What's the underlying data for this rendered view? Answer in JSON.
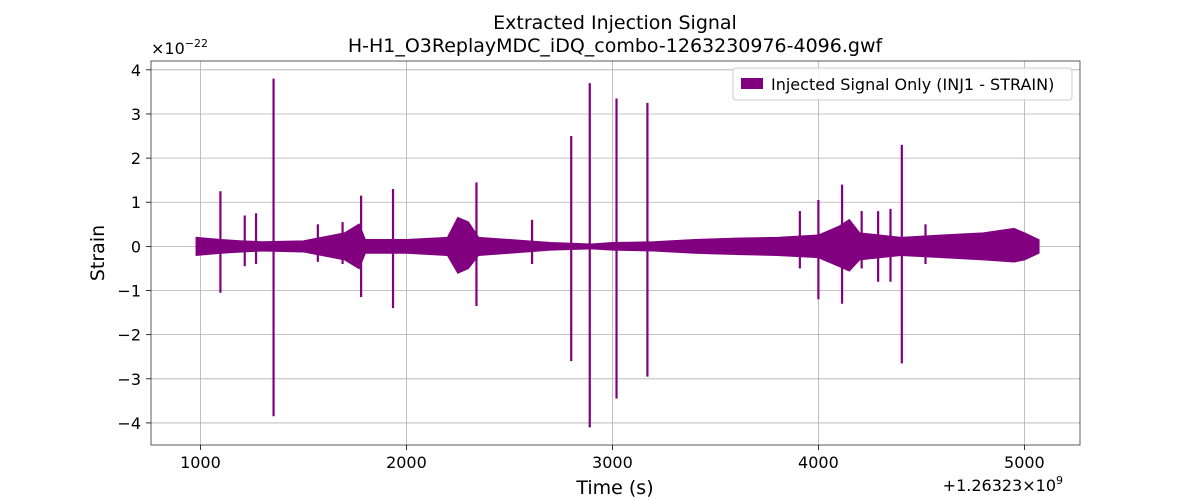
{
  "chart_data": {
    "type": "line",
    "title": "Extracted Injection Signal",
    "subtitle": "H-H1_O3ReplayMDC_iDQ_combo-1263230976-4096.gwf",
    "xlabel": "Time (s)",
    "ylabel": "Strain",
    "x_offset_label": "+1.26323×10",
    "x_offset_exp": "9",
    "y_multiplier_label": "×10",
    "y_multiplier_exp": "−22",
    "xlim": [
      760,
      5270
    ],
    "ylim": [
      -4.5,
      4.2
    ],
    "x_ticks": [
      1000,
      2000,
      3000,
      4000,
      5000
    ],
    "x_tick_labels": [
      "1000",
      "2000",
      "3000",
      "4000",
      "5000"
    ],
    "y_ticks": [
      -4,
      -3,
      -2,
      -1,
      0,
      1,
      2,
      3,
      4
    ],
    "y_tick_labels": [
      "−4",
      "−3",
      "−2",
      "−1",
      "0",
      "1",
      "2",
      "3",
      "4"
    ],
    "grid": true,
    "legend_position": "top-right",
    "series": [
      {
        "name": "Injected Signal Only (INJ1 - STRAIN)",
        "color": "#800080",
        "noise_band": {
          "x": [
            980,
            1100,
            1200,
            1300,
            1500,
            1700,
            1770,
            1800,
            1900,
            2000,
            2200,
            2250,
            2300,
            2350,
            2500,
            2700,
            2900,
            3000,
            3200,
            3400,
            3600,
            3800,
            4000,
            4100,
            4150,
            4200,
            4400,
            4600,
            4800,
            4950,
            5000,
            5070
          ],
          "upper": [
            0.2,
            0.15,
            0.12,
            0.1,
            0.12,
            0.3,
            0.5,
            0.15,
            0.15,
            0.15,
            0.2,
            0.65,
            0.55,
            0.2,
            0.15,
            0.08,
            0.05,
            0.08,
            0.1,
            0.15,
            0.18,
            0.2,
            0.25,
            0.45,
            0.6,
            0.3,
            0.2,
            0.25,
            0.3,
            0.4,
            0.3,
            0.15
          ],
          "lower": [
            -0.2,
            -0.15,
            -0.12,
            -0.1,
            -0.12,
            -0.3,
            -0.5,
            -0.15,
            -0.15,
            -0.15,
            -0.2,
            -0.6,
            -0.5,
            -0.2,
            -0.15,
            -0.08,
            -0.05,
            -0.08,
            -0.1,
            -0.15,
            -0.18,
            -0.2,
            -0.25,
            -0.45,
            -0.55,
            -0.3,
            -0.2,
            -0.25,
            -0.3,
            -0.35,
            -0.3,
            -0.15
          ]
        },
        "spikes": [
          {
            "x": 1097,
            "max": 1.25,
            "min": -1.05
          },
          {
            "x": 1215,
            "max": 0.7,
            "min": -0.45
          },
          {
            "x": 1270,
            "max": 0.75,
            "min": -0.4
          },
          {
            "x": 1355,
            "max": 3.8,
            "min": -3.85
          },
          {
            "x": 1570,
            "max": 0.5,
            "min": -0.35
          },
          {
            "x": 1690,
            "max": 0.55,
            "min": -0.4
          },
          {
            "x": 1780,
            "max": 1.15,
            "min": -1.15
          },
          {
            "x": 1935,
            "max": 1.3,
            "min": -1.4
          },
          {
            "x": 2340,
            "max": 1.45,
            "min": -1.35
          },
          {
            "x": 2610,
            "max": 0.6,
            "min": -0.4
          },
          {
            "x": 2800,
            "max": 2.5,
            "min": -2.6
          },
          {
            "x": 2890,
            "max": 3.7,
            "min": -4.1
          },
          {
            "x": 3020,
            "max": 3.35,
            "min": -3.45
          },
          {
            "x": 3170,
            "max": 3.25,
            "min": -2.95
          },
          {
            "x": 3910,
            "max": 0.8,
            "min": -0.5
          },
          {
            "x": 4000,
            "max": 1.05,
            "min": -1.2
          },
          {
            "x": 4115,
            "max": 1.4,
            "min": -1.3
          },
          {
            "x": 4210,
            "max": 0.8,
            "min": -0.5
          },
          {
            "x": 4290,
            "max": 0.8,
            "min": -0.8
          },
          {
            "x": 4350,
            "max": 0.85,
            "min": -0.8
          },
          {
            "x": 4405,
            "max": 2.3,
            "min": -2.65
          },
          {
            "x": 4520,
            "max": 0.5,
            "min": -0.4
          }
        ]
      }
    ]
  }
}
